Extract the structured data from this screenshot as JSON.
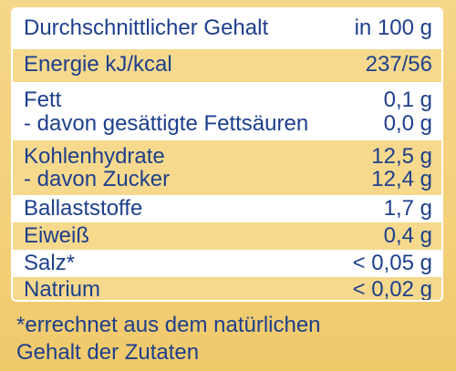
{
  "header": {
    "label": "Durchschnittlicher Gehalt",
    "value": "in 100 g"
  },
  "rows": [
    {
      "label": "Energie kJ/kcal",
      "value": "237/56"
    },
    {
      "label": "Fett",
      "value": "0,1 g"
    },
    {
      "label": "- davon gesättigte Fettsäuren",
      "value": "0,0 g"
    },
    {
      "label": "Kohlenhydrate",
      "value": "12,5 g"
    },
    {
      "label": "- davon Zucker",
      "value": "12,4 g"
    },
    {
      "label": "Ballaststoffe",
      "value": "1,7 g"
    },
    {
      "label": "Eiweiß",
      "value": "0,4 g"
    },
    {
      "label": "Salz*",
      "value": "< 0,05 g"
    },
    {
      "label": "Natrium",
      "value": "< 0,02 g"
    }
  ],
  "footnote": {
    "line1": "*errechnet aus dem natürlichen",
    "line2": "Gehalt der Zutaten"
  },
  "colors": {
    "text": "#1d3f8c",
    "band_yellow": "#f6d98d",
    "band_white": "#ffffff"
  }
}
